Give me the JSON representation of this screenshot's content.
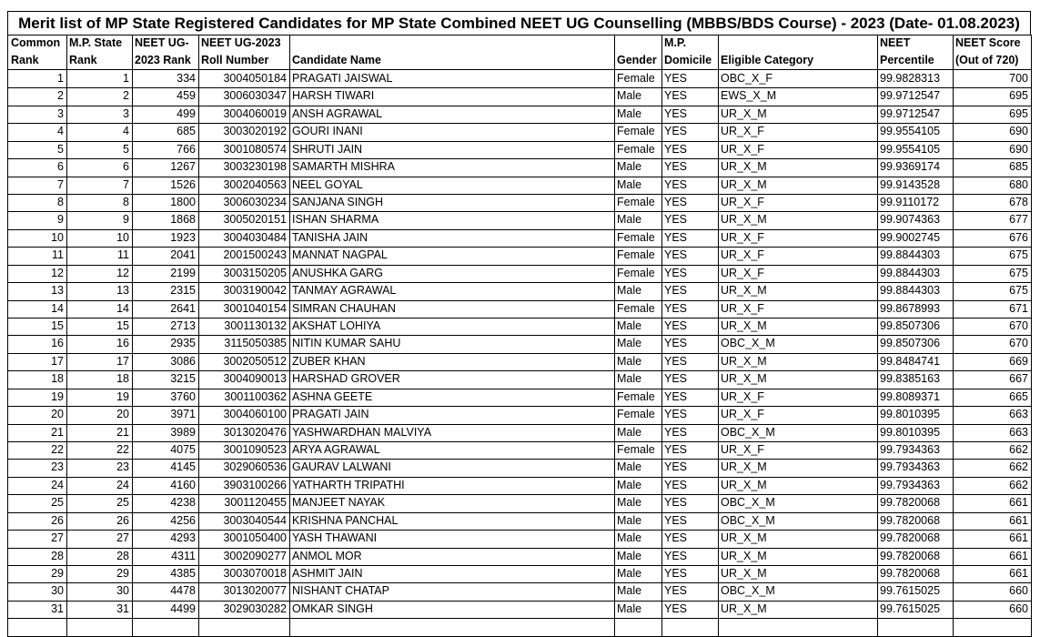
{
  "title": "Merit list of MP State Registered Candidates for MP State Combined NEET UG Counselling (MBBS/BDS Course) - 2023 (Date- 01.08.2023)",
  "table": {
    "header": [
      [
        "Common",
        "Rank"
      ],
      [
        "M.P. State",
        "Rank"
      ],
      [
        "NEET UG-",
        "2023 Rank"
      ],
      [
        "NEET UG-2023",
        "Roll Number"
      ],
      [
        "Candidate Name"
      ],
      [
        "Gender"
      ],
      [
        "M.P.",
        "Domicile"
      ],
      [
        "Eligible Category"
      ],
      [
        "NEET",
        "Percentile"
      ],
      [
        "NEET Score",
        "(Out of 720)"
      ]
    ],
    "rows": [
      [
        "1",
        "1",
        "334",
        "3004050184",
        "PRAGATI JAISWAL",
        "Female",
        "YES",
        "OBC_X_F",
        "99.9828313",
        "700"
      ],
      [
        "2",
        "2",
        "459",
        "3006030347",
        "HARSH TIWARI",
        "Male",
        "YES",
        "EWS_X_M",
        "99.9712547",
        "695"
      ],
      [
        "3",
        "3",
        "499",
        "3004060019",
        "ANSH AGRAWAL",
        "Male",
        "YES",
        "UR_X_M",
        "99.9712547",
        "695"
      ],
      [
        "4",
        "4",
        "685",
        "3003020192",
        "GOURI INANI",
        "Female",
        "YES",
        "UR_X_F",
        "99.9554105",
        "690"
      ],
      [
        "5",
        "5",
        "766",
        "3001080574",
        "SHRUTI JAIN",
        "Female",
        "YES",
        "UR_X_F",
        "99.9554105",
        "690"
      ],
      [
        "6",
        "6",
        "1267",
        "3003230198",
        "SAMARTH MISHRA",
        "Male",
        "YES",
        "UR_X_M",
        "99.9369174",
        "685"
      ],
      [
        "7",
        "7",
        "1526",
        "3002040563",
        "NEEL GOYAL",
        "Male",
        "YES",
        "UR_X_M",
        "99.9143528",
        "680"
      ],
      [
        "8",
        "8",
        "1800",
        "3006030234",
        "SANJANA SINGH",
        "Female",
        "YES",
        "UR_X_F",
        "99.9110172",
        "678"
      ],
      [
        "9",
        "9",
        "1868",
        "3005020151",
        "ISHAN SHARMA",
        "Male",
        "YES",
        "UR_X_M",
        "99.9074363",
        "677"
      ],
      [
        "10",
        "10",
        "1923",
        "3004030484",
        "TANISHA JAIN",
        "Female",
        "YES",
        "UR_X_F",
        "99.9002745",
        "676"
      ],
      [
        "11",
        "11",
        "2041",
        "2001500243",
        "MANNAT NAGPAL",
        "Female",
        "YES",
        "UR_X_F",
        "99.8844303",
        "675"
      ],
      [
        "12",
        "12",
        "2199",
        "3003150205",
        "ANUSHKA GARG",
        "Female",
        "YES",
        "UR_X_F",
        "99.8844303",
        "675"
      ],
      [
        "13",
        "13",
        "2315",
        "3003190042",
        "TANMAY AGRAWAL",
        "Male",
        "YES",
        "UR_X_M",
        "99.8844303",
        "675"
      ],
      [
        "14",
        "14",
        "2641",
        "3001040154",
        "SIMRAN CHAUHAN",
        "Female",
        "YES",
        "UR_X_F",
        "99.8678993",
        "671"
      ],
      [
        "15",
        "15",
        "2713",
        "3001130132",
        "AKSHAT LOHIYA",
        "Male",
        "YES",
        "UR_X_M",
        "99.8507306",
        "670"
      ],
      [
        "16",
        "16",
        "2935",
        "3115050385",
        "NITIN KUMAR SAHU",
        "Male",
        "YES",
        "OBC_X_M",
        "99.8507306",
        "670"
      ],
      [
        "17",
        "17",
        "3086",
        "3002050512",
        "ZUBER KHAN",
        "Male",
        "YES",
        "UR_X_M",
        "99.8484741",
        "669"
      ],
      [
        "18",
        "18",
        "3215",
        "3004090013",
        "HARSHAD GROVER",
        "Male",
        "YES",
        "UR_X_M",
        "99.8385163",
        "667"
      ],
      [
        "19",
        "19",
        "3760",
        "3001100362",
        "ASHNA GEETE",
        "Female",
        "YES",
        "UR_X_F",
        "99.8089371",
        "665"
      ],
      [
        "20",
        "20",
        "3971",
        "3004060100",
        "PRAGATI JAIN",
        "Female",
        "YES",
        "UR_X_F",
        "99.8010395",
        "663"
      ],
      [
        "21",
        "21",
        "3989",
        "3013020476",
        "YASHWARDHAN MALVIYA",
        "Male",
        "YES",
        "OBC_X_M",
        "99.8010395",
        "663"
      ],
      [
        "22",
        "22",
        "4075",
        "3001090523",
        "ARYA AGRAWAL",
        "Female",
        "YES",
        "UR_X_F",
        "99.7934363",
        "662"
      ],
      [
        "23",
        "23",
        "4145",
        "3029060536",
        "GAURAV LALWANI",
        "Male",
        "YES",
        "UR_X_M",
        "99.7934363",
        "662"
      ],
      [
        "24",
        "24",
        "4160",
        "3903100266",
        "YATHARTH TRIPATHI",
        "Male",
        "YES",
        "UR_X_M",
        "99.7934363",
        "662"
      ],
      [
        "25",
        "25",
        "4238",
        "3001120455",
        "MANJEET NAYAK",
        "Male",
        "YES",
        "OBC_X_M",
        "99.7820068",
        "661"
      ],
      [
        "26",
        "26",
        "4256",
        "3003040544",
        "KRISHNA PANCHAL",
        "Male",
        "YES",
        "OBC_X_M",
        "99.7820068",
        "661"
      ],
      [
        "27",
        "27",
        "4293",
        "3001050400",
        "YASH THAWANI",
        "Male",
        "YES",
        "UR_X_M",
        "99.7820068",
        "661"
      ],
      [
        "28",
        "28",
        "4311",
        "3002090277",
        "ANMOL MOR",
        "Male",
        "YES",
        "UR_X_M",
        "99.7820068",
        "661"
      ],
      [
        "29",
        "29",
        "4385",
        "3003070018",
        "ASHMIT JAIN",
        "Male",
        "YES",
        "UR_X_M",
        "99.7820068",
        "661"
      ],
      [
        "30",
        "30",
        "4478",
        "3013020077",
        "NISHANT CHATAP",
        "Male",
        "YES",
        "OBC_X_M",
        "99.7615025",
        "660"
      ],
      [
        "31",
        "31",
        "4499",
        "3029030282",
        "OMKAR SINGH",
        "Male",
        "YES",
        "UR_X_M",
        "99.7615025",
        "660"
      ]
    ]
  }
}
